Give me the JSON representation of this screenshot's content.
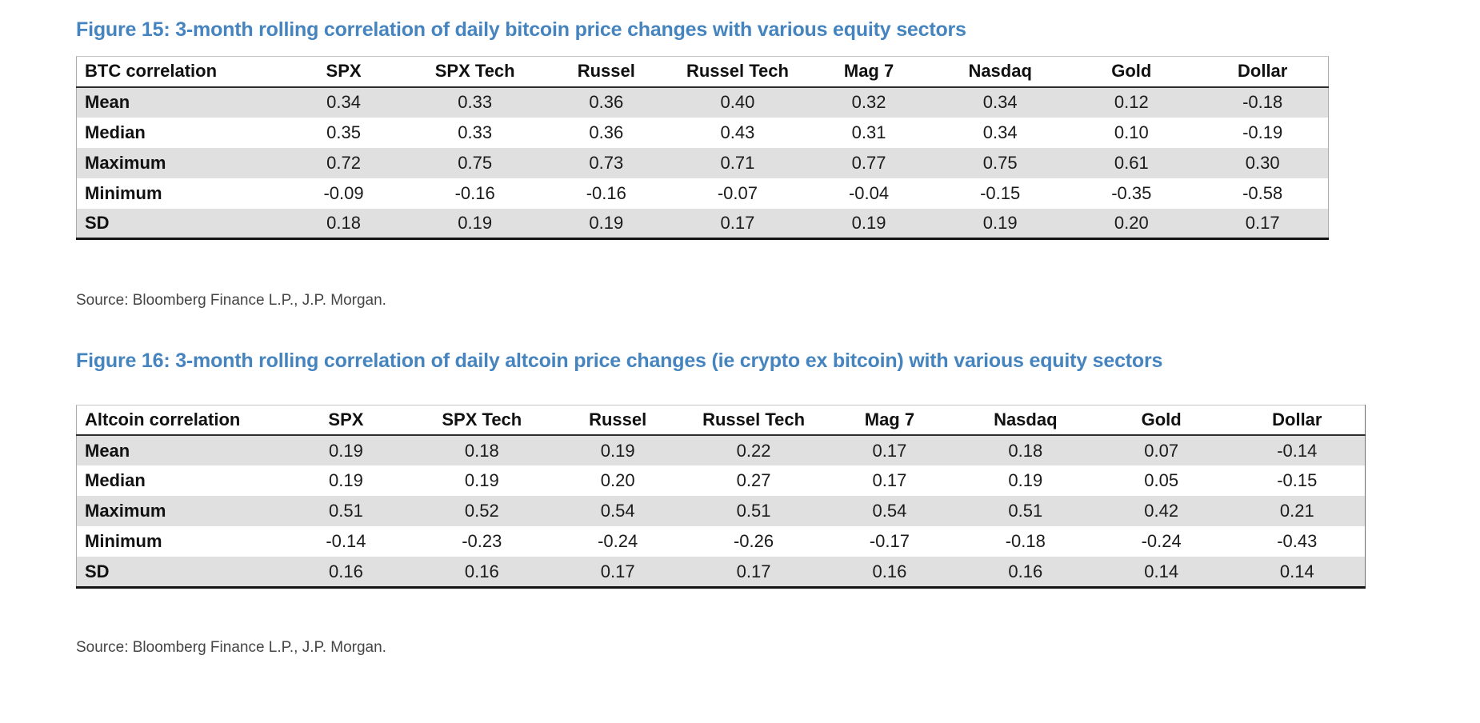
{
  "theme": {
    "accent_blue": "#4584be",
    "stripe_gray": "#e0e0e0"
  },
  "figures": [
    {
      "title": "Figure 15: 3-month rolling correlation of daily bitcoin price changes with various equity sectors",
      "source": "Source: Bloomberg Finance L.P., J.P. Morgan.",
      "table": {
        "columns": [
          "BTC correlation",
          "SPX",
          "SPX Tech",
          "Russel",
          "Russel Tech",
          "Mag 7",
          "Nasdaq",
          "Gold",
          "Dollar"
        ],
        "rows": [
          {
            "label": "Mean",
            "values": [
              "0.34",
              "0.33",
              "0.36",
              "0.40",
              "0.32",
              "0.34",
              "0.12",
              "-0.18"
            ]
          },
          {
            "label": "Median",
            "values": [
              "0.35",
              "0.33",
              "0.36",
              "0.43",
              "0.31",
              "0.34",
              "0.10",
              "-0.19"
            ]
          },
          {
            "label": "Maximum",
            "values": [
              "0.72",
              "0.75",
              "0.73",
              "0.71",
              "0.77",
              "0.75",
              "0.61",
              "0.30"
            ]
          },
          {
            "label": "Minimum",
            "values": [
              "-0.09",
              "-0.16",
              "-0.16",
              "-0.07",
              "-0.04",
              "-0.15",
              "-0.35",
              "-0.58"
            ]
          },
          {
            "label": "SD",
            "values": [
              "0.18",
              "0.19",
              "0.19",
              "0.17",
              "0.19",
              "0.19",
              "0.20",
              "0.17"
            ]
          }
        ]
      }
    },
    {
      "title": "Figure 16: 3-month rolling correlation of daily altcoin price changes (ie crypto ex bitcoin) with various equity sectors",
      "source": "Source: Bloomberg Finance L.P., J.P. Morgan.",
      "table": {
        "columns": [
          "Altcoin correlation",
          "SPX",
          "SPX Tech",
          "Russel",
          "Russel Tech",
          "Mag 7",
          "Nasdaq",
          "Gold",
          "Dollar"
        ],
        "rows": [
          {
            "label": "Mean",
            "values": [
              "0.19",
              "0.18",
              "0.19",
              "0.22",
              "0.17",
              "0.18",
              "0.07",
              "-0.14"
            ]
          },
          {
            "label": "Median",
            "values": [
              "0.19",
              "0.19",
              "0.20",
              "0.27",
              "0.17",
              "0.19",
              "0.05",
              "-0.15"
            ]
          },
          {
            "label": "Maximum",
            "values": [
              "0.51",
              "0.52",
              "0.54",
              "0.51",
              "0.54",
              "0.51",
              "0.42",
              "0.21"
            ]
          },
          {
            "label": "Minimum",
            "values": [
              "-0.14",
              "-0.23",
              "-0.24",
              "-0.26",
              "-0.17",
              "-0.18",
              "-0.24",
              "-0.43"
            ]
          },
          {
            "label": "SD",
            "values": [
              "0.16",
              "0.16",
              "0.17",
              "0.17",
              "0.16",
              "0.16",
              "0.14",
              "0.14"
            ]
          }
        ]
      }
    }
  ]
}
